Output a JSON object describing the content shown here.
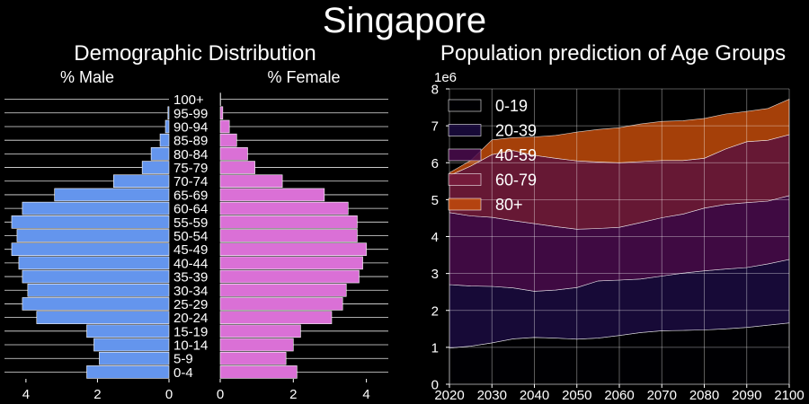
{
  "figure_title": "Singapore",
  "chart_data": [
    {
      "type": "bar",
      "orientation": "horizontal",
      "title": "Demographic Distribution",
      "age_groups": [
        "0-4",
        "5-9",
        "10-14",
        "15-19",
        "20-24",
        "25-29",
        "30-34",
        "35-39",
        "40-44",
        "45-49",
        "50-54",
        "55-59",
        "60-64",
        "65-69",
        "70-74",
        "75-79",
        "80-84",
        "85-89",
        "90-94",
        "95-99",
        "100+"
      ],
      "male": {
        "label": "% Male",
        "color": "#6495ed",
        "values": [
          2.3,
          1.95,
          2.1,
          2.3,
          3.7,
          4.1,
          3.95,
          4.1,
          4.2,
          4.4,
          4.25,
          4.4,
          4.1,
          3.2,
          1.55,
          0.75,
          0.5,
          0.25,
          0.1,
          0.03,
          0.0
        ],
        "xlim": [
          4.6,
          0
        ],
        "ticks": [
          4,
          2,
          0
        ]
      },
      "female": {
        "label": "% Female",
        "color": "#da70d6",
        "values": [
          2.1,
          1.8,
          2.0,
          2.2,
          3.05,
          3.35,
          3.45,
          3.8,
          3.9,
          4.0,
          3.75,
          3.75,
          3.5,
          2.85,
          1.7,
          0.95,
          0.75,
          0.45,
          0.25,
          0.07,
          0.01
        ],
        "xlim": [
          0,
          4.6
        ],
        "ticks": [
          0,
          2,
          4
        ]
      }
    },
    {
      "type": "area",
      "stacked": true,
      "title": "Population prediction of Age Groups",
      "y_offset_label": "1e6",
      "x": [
        2020,
        2025,
        2030,
        2035,
        2040,
        2045,
        2050,
        2055,
        2060,
        2065,
        2070,
        2075,
        2080,
        2085,
        2090,
        2095,
        2100
      ],
      "xlim": [
        2020,
        2100
      ],
      "ylim": [
        0,
        8
      ],
      "xticks": [
        2020,
        2030,
        2040,
        2050,
        2060,
        2070,
        2080,
        2090,
        2100
      ],
      "yticks": [
        0,
        1,
        2,
        3,
        4,
        5,
        6,
        7,
        8
      ],
      "grid": true,
      "legend_position": "top-left",
      "series": [
        {
          "name": "0-19",
          "color": "#000004",
          "values": [
            0.98,
            1.03,
            1.12,
            1.23,
            1.27,
            1.25,
            1.22,
            1.25,
            1.32,
            1.4,
            1.45,
            1.46,
            1.47,
            1.5,
            1.54,
            1.6,
            1.66
          ]
        },
        {
          "name": "20-39",
          "color": "#1b0c41",
          "values": [
            1.72,
            1.63,
            1.53,
            1.38,
            1.25,
            1.3,
            1.4,
            1.55,
            1.5,
            1.45,
            1.48,
            1.55,
            1.6,
            1.62,
            1.62,
            1.66,
            1.72
          ]
        },
        {
          "name": "40-59",
          "color": "#4a0c4e",
          "values": [
            1.95,
            1.9,
            1.87,
            1.82,
            1.83,
            1.72,
            1.58,
            1.42,
            1.43,
            1.53,
            1.58,
            1.6,
            1.7,
            1.75,
            1.76,
            1.7,
            1.73
          ]
        },
        {
          "name": "60-79",
          "color": "#781c3d",
          "values": [
            1.0,
            1.35,
            1.7,
            1.9,
            1.85,
            1.85,
            1.85,
            1.8,
            1.75,
            1.65,
            1.55,
            1.45,
            1.35,
            1.5,
            1.65,
            1.65,
            1.65
          ]
        },
        {
          "name": "80+",
          "color": "#c24b0b",
          "values": [
            0.08,
            0.15,
            0.4,
            0.35,
            0.5,
            0.62,
            0.78,
            0.88,
            0.95,
            1.02,
            1.06,
            1.08,
            1.08,
            0.95,
            0.82,
            0.86,
            0.96
          ]
        }
      ]
    }
  ]
}
